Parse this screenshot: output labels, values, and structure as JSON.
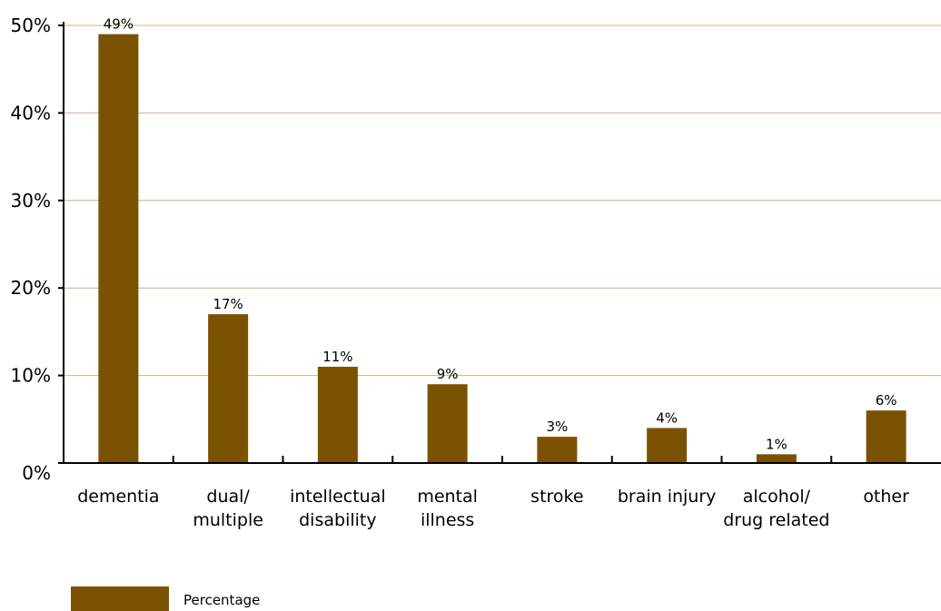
{
  "chart_data": {
    "type": "bar",
    "categories": [
      [
        "dementia"
      ],
      [
        "dual/",
        "multiple"
      ],
      [
        "intellectual",
        "disability"
      ],
      [
        "mental",
        "illness"
      ],
      [
        "stroke"
      ],
      [
        "brain injury"
      ],
      [
        "alcohol/",
        "drug related"
      ],
      [
        "other"
      ]
    ],
    "series": [
      {
        "name": "Percentage",
        "values": [
          49,
          17,
          11,
          9,
          3,
          4,
          1,
          6
        ],
        "labels": [
          "49%",
          "17%",
          "11%",
          "9%",
          "3%",
          "4%",
          "1%",
          "6%"
        ],
        "color": "#7b5200"
      }
    ],
    "yticks": [
      0,
      10,
      20,
      30,
      40,
      50
    ],
    "ytick_labels": [
      "0%",
      "10%",
      "20%",
      "30%",
      "40%",
      "50%"
    ],
    "ylim": [
      0,
      50
    ],
    "grid": true,
    "grid_color": "#c8b48c",
    "legend_position": "bottom-left",
    "title": "",
    "xlabel": "",
    "ylabel": ""
  }
}
